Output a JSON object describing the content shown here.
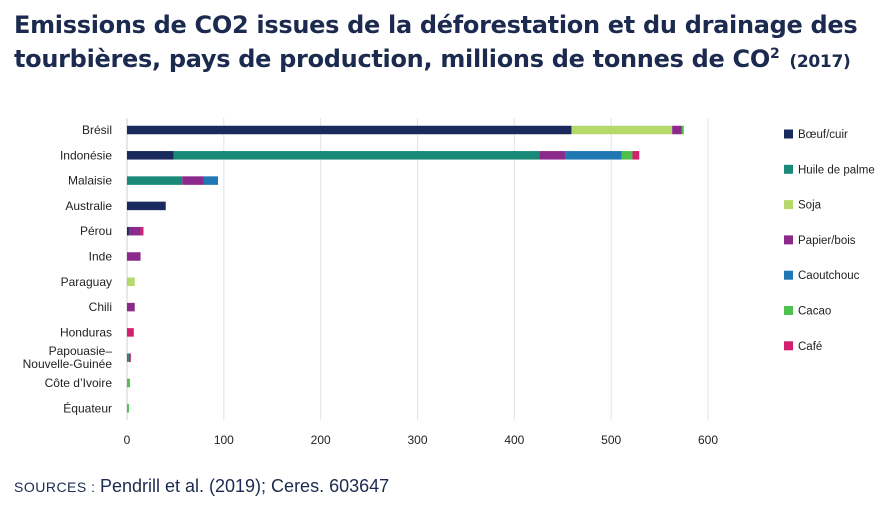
{
  "title": {
    "line1": "Emissions de CO2 issues de la déforestation et du drainage des",
    "line2": "tourbières, pays de production, millions de tonnes de CO",
    "sup": "2",
    "year": "(2017)"
  },
  "source": {
    "prefix": "SOURCES :",
    "text": "Pendrill et al. (2019); Ceres. 603647"
  },
  "chart_data": {
    "type": "bar",
    "orientation": "horizontal",
    "stacked": true,
    "title": "Emissions de CO2 issues de la déforestation et du drainage des tourbières, pays de production, millions de tonnes de CO2 (2017)",
    "xlabel": "",
    "ylabel": "",
    "xlim": [
      0,
      600
    ],
    "xticks": [
      0,
      100,
      200,
      300,
      400,
      500,
      600
    ],
    "grid": true,
    "legend_position": "right",
    "categories": [
      "Brésil",
      "Indonésie",
      "Malaisie",
      "Australie",
      "Pérou",
      "Inde",
      "Paraguay",
      "Chili",
      "Honduras",
      "Papouasie–Nouvelle-Guinée",
      "Côte d’Ivoire",
      "Équateur"
    ],
    "category_lines": [
      [
        "Brésil"
      ],
      [
        "Indonésie"
      ],
      [
        "Malaisie"
      ],
      [
        "Australie"
      ],
      [
        "Pérou"
      ],
      [
        "Inde"
      ],
      [
        "Paraguay"
      ],
      [
        "Chili"
      ],
      [
        "Honduras"
      ],
      [
        "Papouasie–",
        "Nouvelle-Guinée"
      ],
      [
        "Côte d’Ivoire"
      ],
      [
        "Équateur"
      ]
    ],
    "series": [
      {
        "name": "Bœuf/cuir",
        "color": "#1b2a5c",
        "values": [
          459,
          48,
          0,
          40,
          2,
          0,
          0,
          0,
          0,
          0,
          0,
          0
        ]
      },
      {
        "name": "Huile de palme",
        "color": "#1a8a78",
        "values": [
          0,
          378,
          57,
          0,
          0,
          0,
          0,
          0,
          0,
          2,
          0,
          0
        ]
      },
      {
        "name": "Soja",
        "color": "#b5d96a",
        "values": [
          104,
          0,
          0,
          0,
          0,
          0,
          8,
          0,
          0,
          0,
          0,
          0
        ]
      },
      {
        "name": "Papier/bois",
        "color": "#8c2a8c",
        "values": [
          10,
          27,
          22,
          0,
          12,
          14,
          0,
          8,
          0,
          0,
          0,
          0
        ]
      },
      {
        "name": "Caoutchouc",
        "color": "#1f78b4",
        "values": [
          0,
          58,
          15,
          0,
          0,
          0,
          0,
          0,
          0,
          0,
          0,
          0
        ]
      },
      {
        "name": "Cacao",
        "color": "#4dc04d",
        "values": [
          2,
          11,
          0,
          0,
          0,
          0,
          0,
          0,
          0,
          0,
          3,
          2
        ]
      },
      {
        "name": "Café",
        "color": "#d0206e",
        "values": [
          0,
          7,
          0,
          0,
          3,
          0,
          0,
          0,
          7,
          2,
          0,
          0
        ]
      }
    ]
  }
}
